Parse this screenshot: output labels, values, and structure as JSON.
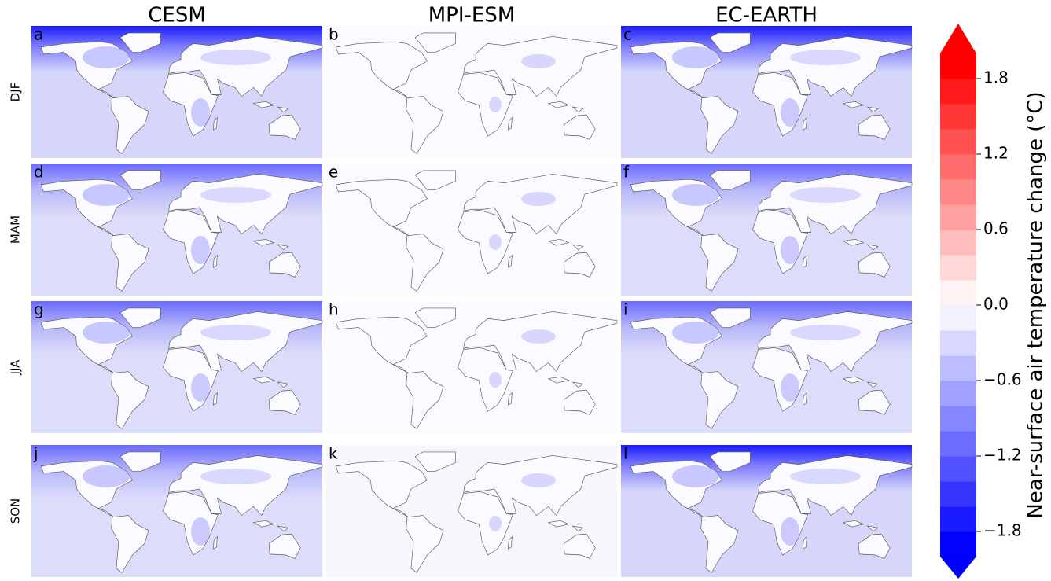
{
  "figure": {
    "columns": [
      "CESM",
      "MPI-ESM",
      "EC-EARTH"
    ],
    "rows": [
      "DJF",
      "MAM",
      "JJA",
      "SON"
    ],
    "panels": [
      [
        "a",
        "b",
        "c"
      ],
      [
        "d",
        "e",
        "f"
      ],
      [
        "g",
        "h",
        "i"
      ],
      [
        "j",
        "k",
        "l"
      ]
    ]
  },
  "colorbar": {
    "label": "Near-surface air temperature change (°C)",
    "cmap": "bwr",
    "lim": [
      -2.0,
      2.0
    ],
    "ticks": [
      1.8,
      1.2,
      0.6,
      {
        "value": 0.0,
        "label": "0.0"
      },
      {
        "value": -0.6,
        "label": "−0.6"
      },
      {
        "value": -1.2,
        "label": "−1.2"
      },
      {
        "value": -1.8,
        "label": "−1.8"
      }
    ],
    "extend": "both"
  }
}
